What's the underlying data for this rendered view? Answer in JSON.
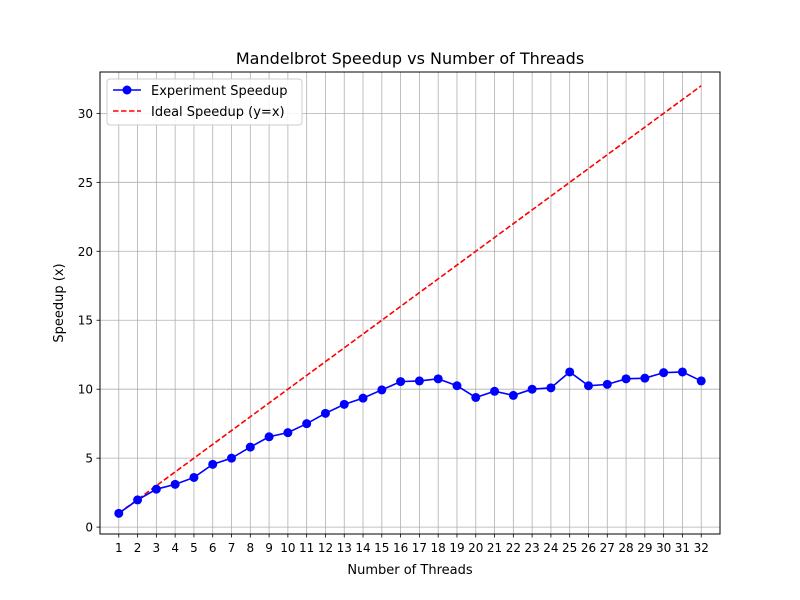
{
  "chart_data": {
    "type": "line",
    "title": "Mandelbrot Speedup vs Number of Threads",
    "xlabel": "Number of Threads",
    "ylabel": "Speedup (x)",
    "x": [
      1,
      2,
      3,
      4,
      5,
      6,
      7,
      8,
      9,
      10,
      11,
      12,
      13,
      14,
      15,
      16,
      17,
      18,
      19,
      20,
      21,
      22,
      23,
      24,
      25,
      26,
      27,
      28,
      29,
      30,
      31,
      32
    ],
    "xlim": [
      0,
      33
    ],
    "ylim": [
      -0.5,
      33
    ],
    "yticks": [
      0,
      5,
      10,
      15,
      20,
      25,
      30
    ],
    "grid": true,
    "legend_position": "top-left",
    "series": [
      {
        "name": "Experiment Speedup",
        "style": "solid-line-circle-markers",
        "color": "#0000ff",
        "values": [
          1.0,
          1.97,
          2.75,
          3.1,
          3.6,
          4.55,
          5.0,
          5.8,
          6.55,
          6.85,
          7.5,
          8.25,
          8.9,
          9.35,
          9.95,
          10.55,
          10.6,
          10.75,
          10.25,
          9.4,
          9.85,
          9.55,
          10.0,
          10.1,
          11.25,
          10.25,
          10.35,
          10.75,
          10.8,
          11.2,
          11.25,
          10.6
        ]
      },
      {
        "name": "Ideal Speedup (y=x)",
        "style": "dashed-line",
        "color": "#ff0000",
        "values": [
          1,
          2,
          3,
          4,
          5,
          6,
          7,
          8,
          9,
          10,
          11,
          12,
          13,
          14,
          15,
          16,
          17,
          18,
          19,
          20,
          21,
          22,
          23,
          24,
          25,
          26,
          27,
          28,
          29,
          30,
          31,
          32
        ]
      }
    ]
  }
}
